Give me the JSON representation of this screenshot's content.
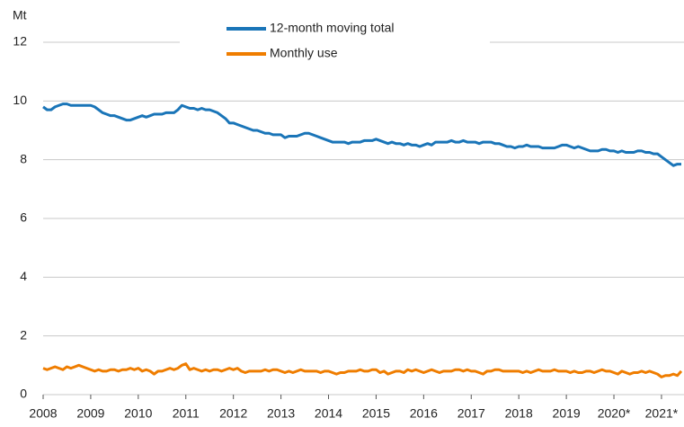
{
  "chart_data": {
    "type": "line",
    "y_label": "Mt",
    "categories": [
      "2008",
      null,
      null,
      null,
      null,
      null,
      null,
      null,
      null,
      null,
      null,
      null,
      "2009",
      null,
      null,
      null,
      null,
      null,
      null,
      null,
      null,
      null,
      null,
      null,
      "2010",
      null,
      null,
      null,
      null,
      null,
      null,
      null,
      null,
      null,
      null,
      null,
      "2011",
      null,
      null,
      null,
      null,
      null,
      null,
      null,
      null,
      null,
      null,
      null,
      "2012",
      null,
      null,
      null,
      null,
      null,
      null,
      null,
      null,
      null,
      null,
      null,
      "2013",
      null,
      null,
      null,
      null,
      null,
      null,
      null,
      null,
      null,
      null,
      null,
      "2014",
      null,
      null,
      null,
      null,
      null,
      null,
      null,
      null,
      null,
      null,
      null,
      "2015",
      null,
      null,
      null,
      null,
      null,
      null,
      null,
      null,
      null,
      null,
      null,
      "2016",
      null,
      null,
      null,
      null,
      null,
      null,
      null,
      null,
      null,
      null,
      null,
      "2017",
      null,
      null,
      null,
      null,
      null,
      null,
      null,
      null,
      null,
      null,
      null,
      "2018",
      null,
      null,
      null,
      null,
      null,
      null,
      null,
      null,
      null,
      null,
      null,
      "2019",
      null,
      null,
      null,
      null,
      null,
      null,
      null,
      null,
      null,
      null,
      null,
      "2020*",
      null,
      null,
      null,
      null,
      null,
      null,
      null,
      null,
      null,
      null,
      null,
      "2021*",
      null,
      null,
      null,
      null,
      null
    ],
    "series": [
      {
        "name": "12-month moving total",
        "color": "#1a75b8",
        "values": [
          9.8,
          9.7,
          9.7,
          9.8,
          9.85,
          9.9,
          9.9,
          9.85,
          9.85,
          9.85,
          9.85,
          9.85,
          9.85,
          9.8,
          9.7,
          9.6,
          9.55,
          9.5,
          9.5,
          9.45,
          9.4,
          9.35,
          9.35,
          9.4,
          9.45,
          9.5,
          9.45,
          9.5,
          9.55,
          9.55,
          9.55,
          9.6,
          9.6,
          9.6,
          9.7,
          9.85,
          9.8,
          9.75,
          9.75,
          9.7,
          9.75,
          9.7,
          9.7,
          9.65,
          9.6,
          9.5,
          9.4,
          9.25,
          9.25,
          9.2,
          9.15,
          9.1,
          9.05,
          9.0,
          9.0,
          8.95,
          8.9,
          8.9,
          8.85,
          8.85,
          8.85,
          8.75,
          8.8,
          8.8,
          8.8,
          8.85,
          8.9,
          8.9,
          8.85,
          8.8,
          8.75,
          8.7,
          8.65,
          8.6,
          8.6,
          8.6,
          8.6,
          8.55,
          8.6,
          8.6,
          8.6,
          8.65,
          8.65,
          8.65,
          8.7,
          8.65,
          8.6,
          8.55,
          8.6,
          8.55,
          8.55,
          8.5,
          8.55,
          8.5,
          8.5,
          8.45,
          8.5,
          8.55,
          8.5,
          8.6,
          8.6,
          8.6,
          8.6,
          8.65,
          8.6,
          8.6,
          8.65,
          8.6,
          8.6,
          8.6,
          8.55,
          8.6,
          8.6,
          8.6,
          8.55,
          8.55,
          8.5,
          8.45,
          8.45,
          8.4,
          8.45,
          8.45,
          8.5,
          8.45,
          8.45,
          8.45,
          8.4,
          8.4,
          8.4,
          8.4,
          8.45,
          8.5,
          8.5,
          8.45,
          8.4,
          8.45,
          8.4,
          8.35,
          8.3,
          8.3,
          8.3,
          8.35,
          8.35,
          8.3,
          8.3,
          8.25,
          8.3,
          8.25,
          8.25,
          8.25,
          8.3,
          8.3,
          8.25,
          8.25,
          8.2,
          8.2,
          8.1,
          8.0,
          7.9,
          7.8,
          7.85,
          7.85
        ]
      },
      {
        "name": "Monthly use",
        "color": "#ef7d00",
        "values": [
          0.9,
          0.85,
          0.9,
          0.95,
          0.9,
          0.85,
          0.95,
          0.9,
          0.95,
          1.0,
          0.95,
          0.9,
          0.85,
          0.8,
          0.85,
          0.8,
          0.8,
          0.85,
          0.85,
          0.8,
          0.85,
          0.85,
          0.9,
          0.85,
          0.9,
          0.8,
          0.85,
          0.8,
          0.7,
          0.8,
          0.8,
          0.85,
          0.9,
          0.85,
          0.9,
          1.0,
          1.05,
          0.85,
          0.9,
          0.85,
          0.8,
          0.85,
          0.8,
          0.85,
          0.85,
          0.8,
          0.85,
          0.9,
          0.85,
          0.9,
          0.8,
          0.75,
          0.8,
          0.8,
          0.8,
          0.8,
          0.85,
          0.8,
          0.85,
          0.85,
          0.8,
          0.75,
          0.8,
          0.75,
          0.8,
          0.85,
          0.8,
          0.8,
          0.8,
          0.8,
          0.75,
          0.8,
          0.8,
          0.75,
          0.7,
          0.75,
          0.75,
          0.8,
          0.8,
          0.8,
          0.85,
          0.8,
          0.8,
          0.85,
          0.85,
          0.75,
          0.8,
          0.7,
          0.75,
          0.8,
          0.8,
          0.75,
          0.85,
          0.8,
          0.85,
          0.8,
          0.75,
          0.8,
          0.85,
          0.8,
          0.75,
          0.8,
          0.8,
          0.8,
          0.85,
          0.85,
          0.8,
          0.85,
          0.8,
          0.8,
          0.75,
          0.7,
          0.8,
          0.8,
          0.85,
          0.85,
          0.8,
          0.8,
          0.8,
          0.8,
          0.8,
          0.75,
          0.8,
          0.75,
          0.8,
          0.85,
          0.8,
          0.8,
          0.8,
          0.85,
          0.8,
          0.8,
          0.8,
          0.75,
          0.8,
          0.75,
          0.75,
          0.8,
          0.8,
          0.75,
          0.8,
          0.85,
          0.8,
          0.8,
          0.75,
          0.7,
          0.8,
          0.75,
          0.7,
          0.75,
          0.75,
          0.8,
          0.75,
          0.8,
          0.75,
          0.7,
          0.6,
          0.65,
          0.65,
          0.7,
          0.65,
          0.8
        ]
      }
    ],
    "ylim": [
      0,
      12
    ],
    "yticks": [
      0,
      2,
      4,
      6,
      8,
      10,
      12
    ],
    "grid": true,
    "legend": "top"
  }
}
